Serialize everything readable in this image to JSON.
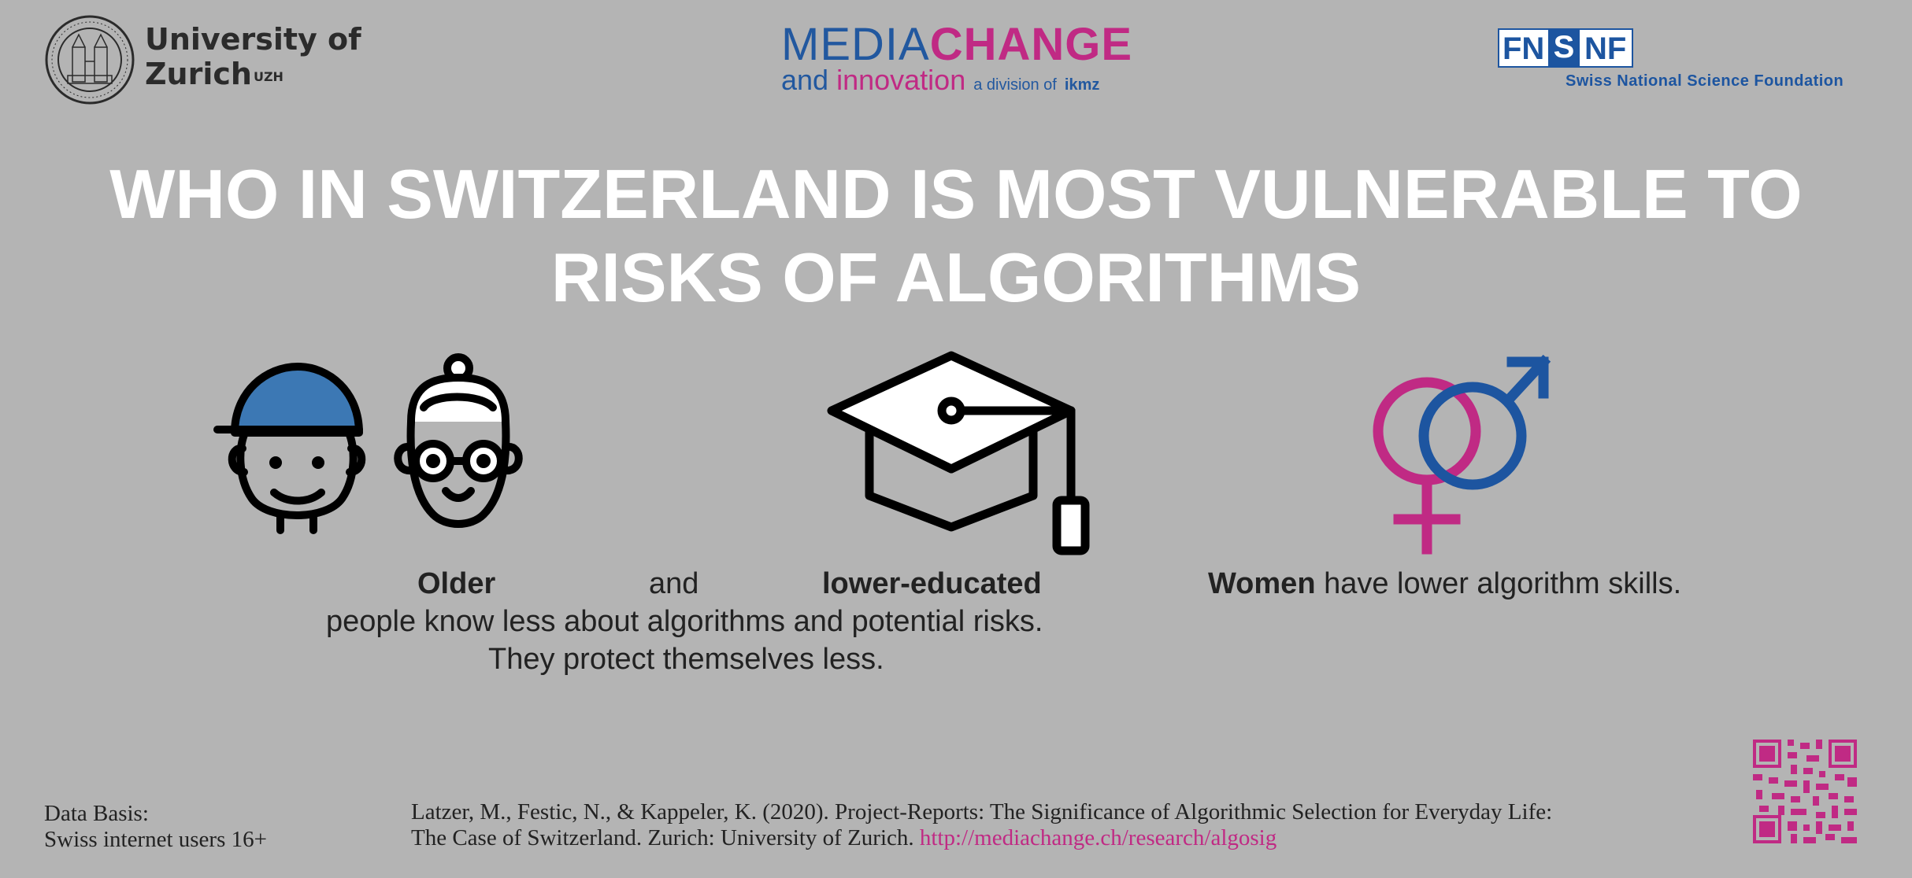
{
  "header": {
    "uzh": {
      "line1": "University of",
      "line2": "Zurich",
      "sup": "UZH"
    },
    "mediachange": {
      "media": "MEDIA",
      "change": "CHANGE",
      "and": "and",
      "innovation": "innovation",
      "division": "a division of",
      "ikmz": "ikmz"
    },
    "snf": {
      "box_left": "FN",
      "box_mid": "S",
      "box_right": "NF",
      "name": "Swiss National Science Foundation"
    }
  },
  "title": {
    "line1": "WHO IN SWITZERLAND IS MOST VULNERABLE TO",
    "line2": "RISKS OF ALGORITHMS"
  },
  "findings": {
    "older": "Older",
    "and": "and",
    "lower_educated": "lower-educated",
    "line2": "people know less about algorithms and potential risks.",
    "line3": "They protect themselves less.",
    "women_bold": "Women",
    "women_rest": " have lower algorithm skills."
  },
  "footer": {
    "basis_label": "Data Basis:",
    "basis_value": "Swiss internet users 16+",
    "citation_line1": "Latzer, M., Festic, N., & Kappeler, K. (2020). Project-Reports: The Significance of Algorithmic Selection for Everyday Life:",
    "citation_line2": "The Case of Switzerland. Zurich: University of Zurich. ",
    "link": "http://mediachange.ch/research/algosig"
  },
  "colors": {
    "background": "#b4b4b4",
    "title": "#ffffff",
    "blue": "#22589f",
    "magenta": "#c02a84",
    "cap_blue": "#3c78b4"
  },
  "icons": [
    "uzh-seal-icon",
    "child-icon",
    "elderly-person-icon",
    "graduation-cap-icon",
    "gender-symbols-icon",
    "qr-code-icon"
  ]
}
